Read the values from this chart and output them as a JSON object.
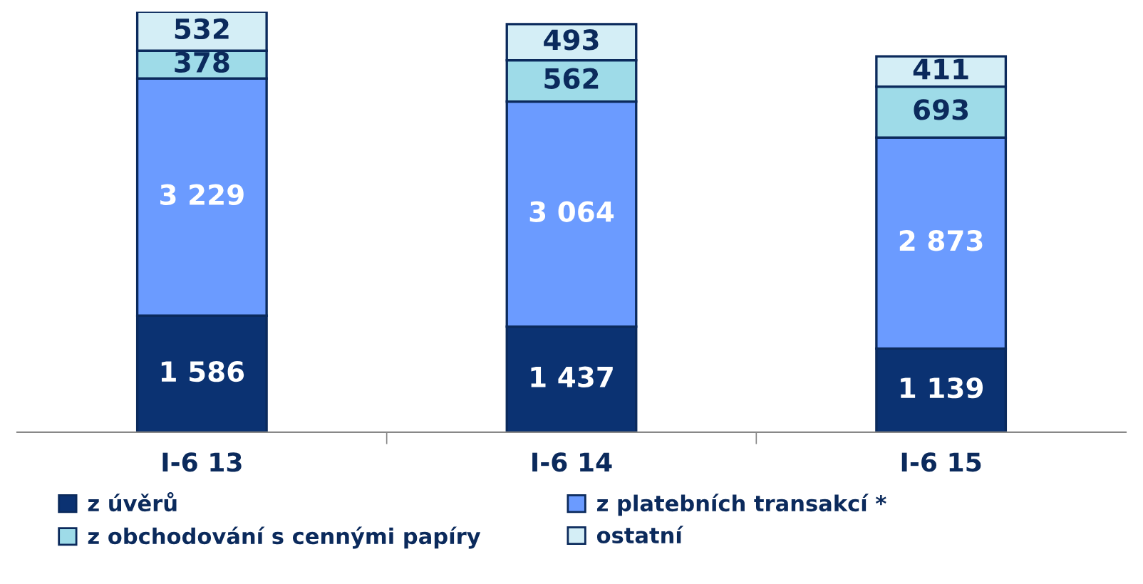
{
  "chart_data": {
    "type": "bar",
    "stacked": true,
    "categories": [
      "I-6 13",
      "I-6 14",
      "I-6 15"
    ],
    "series": [
      {
        "name": "z úvěrů",
        "color": "#0b3272",
        "values": [
          1586,
          1437,
          1139
        ]
      },
      {
        "name": "z platebních transakcí *",
        "color": "#6b9bff",
        "values": [
          3229,
          3064,
          2873
        ]
      },
      {
        "name": "z obchodování s cennými papíry",
        "color": "#9edbe8",
        "values": [
          378,
          562,
          693
        ]
      },
      {
        "name": "ostatní",
        "color": "#d4eef6",
        "values": [
          532,
          493,
          411
        ]
      }
    ],
    "data_labels": true,
    "legend": "bottom",
    "grid": false
  }
}
